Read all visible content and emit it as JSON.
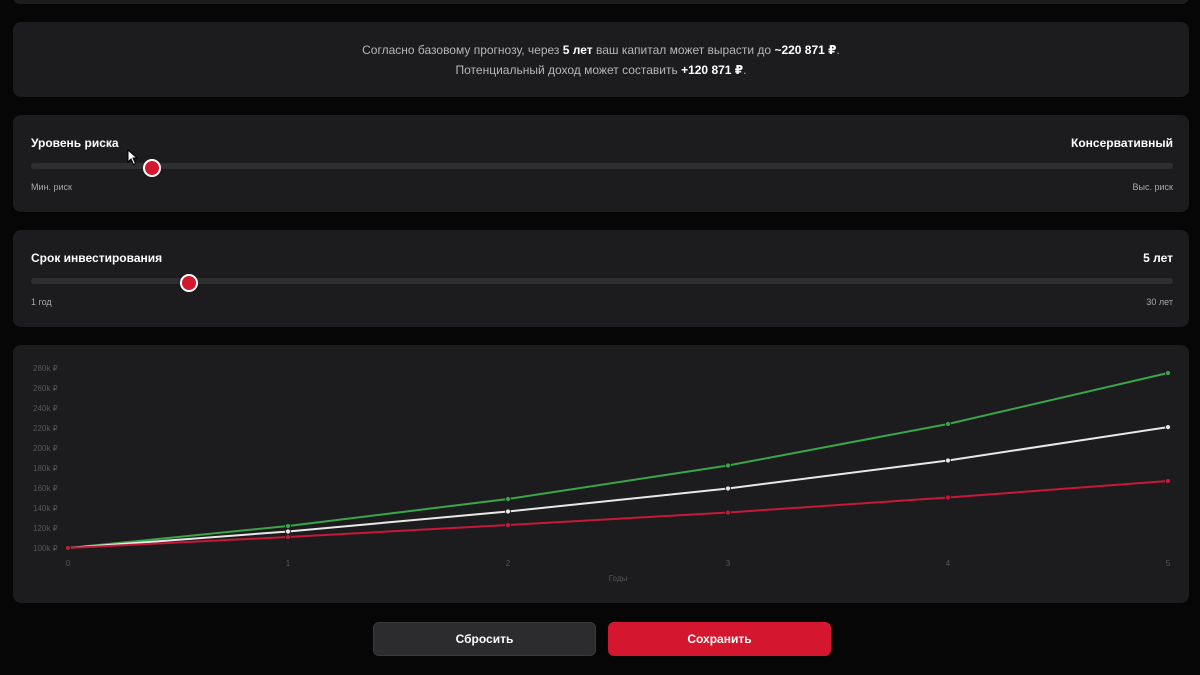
{
  "summary": {
    "line1_pre": "Согласно базовому прогнозу, через ",
    "line1_years": "5 лет",
    "line1_mid": " ваш капитал может вырасти до ",
    "line1_amount": "~220 871 ₽",
    "line1_end": ".",
    "line2_pre": "Потенциальный доход может составить ",
    "line2_amount": "+120 871 ₽",
    "line2_end": "."
  },
  "risk": {
    "label": "Уровень риска",
    "value": "Консервативный",
    "min_label": "Мин. риск",
    "max_label": "Выс. риск",
    "level_fraction": 0.106
  },
  "term": {
    "label": "Срок инвестирования",
    "value": "5 лет",
    "min_label": "1 год",
    "max_label": "30 лет",
    "min": 1,
    "max": 30,
    "current": 5
  },
  "chart_data": {
    "type": "line",
    "xlabel": "Годы",
    "ylabel": "",
    "x": [
      0,
      1,
      2,
      3,
      4,
      5
    ],
    "ylim": [
      100000,
      280000
    ],
    "yticks": [
      100000,
      120000,
      140000,
      160000,
      180000,
      200000,
      220000,
      240000,
      260000,
      280000
    ],
    "ytick_labels": [
      "100k ₽",
      "120k ₽",
      "140k ₽",
      "160k ₽",
      "180k ₽",
      "200k ₽",
      "220k ₽",
      "240k ₽",
      "260k ₽",
      "280k ₽"
    ],
    "xtick_labels": [
      "0",
      "1",
      "2",
      "3",
      "4",
      "5"
    ],
    "series": [
      {
        "key": "optimistic",
        "color": "#3aa64a",
        "values": [
          100000,
          122000,
          149000,
          182500,
          224000,
          275000
        ]
      },
      {
        "key": "base",
        "color": "#e8e8e8",
        "values": [
          100000,
          116500,
          136500,
          159500,
          187500,
          220871
        ]
      },
      {
        "key": "pessimistic",
        "color": "#c8173a",
        "values": [
          100000,
          111000,
          123000,
          135500,
          150500,
          167000
        ]
      }
    ],
    "grid": false
  },
  "buttons": {
    "reset": "Сбросить",
    "save": "Сохранить"
  },
  "colors": {
    "accent": "#d4172e",
    "card": "#1c1c1e",
    "background": "#060606"
  }
}
